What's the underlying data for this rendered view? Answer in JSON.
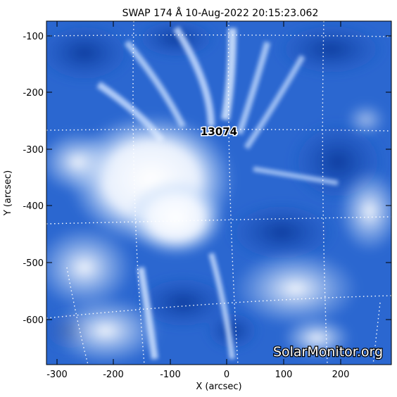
{
  "title": "SWAP 174 Å 10-Aug-2022 20:15:23.062",
  "x_axis": {
    "label": "X (arcsec)",
    "ticks": [
      "-300",
      "-200",
      "-100",
      "0",
      "100",
      "200"
    ],
    "range": [
      -322,
      286
    ]
  },
  "y_axis": {
    "label": "Y (arcsec)",
    "ticks": [
      "-100",
      "-200",
      "-300",
      "-400",
      "-500",
      "-600"
    ],
    "range": [
      -677,
      -69
    ]
  },
  "region_label": "13074",
  "watermark": "SolarMonitor.org",
  "colors": {
    "background": "#ffffff",
    "image_dark": "#0a3a9c",
    "image_mid": "#2f6fd6",
    "image_bright": "#ffffff",
    "grid": "#ffffff",
    "axes": "#000000"
  }
}
